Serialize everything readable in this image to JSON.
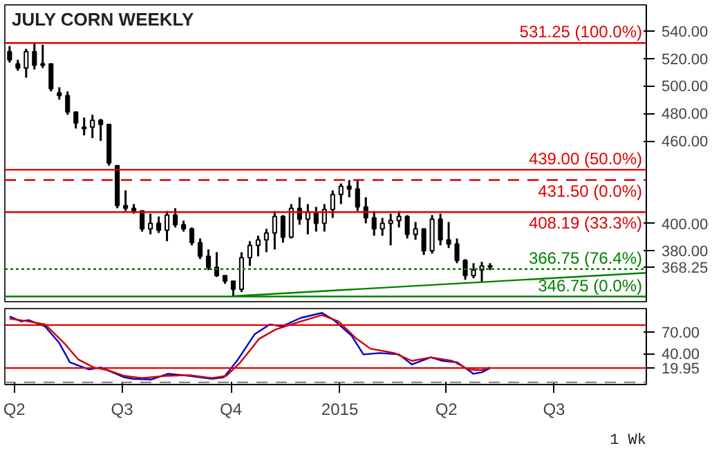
{
  "chart_data": [
    {
      "type": "candlestick",
      "title": "JULY CORN WEEKLY",
      "tick_labels": "y",
      "grid": false,
      "x": [
        "2014-03-28",
        "2014-04-04",
        "2014-04-11",
        "2014-04-18",
        "2014-04-25",
        "2014-05-02",
        "2014-05-09",
        "2014-05-16",
        "2014-05-23",
        "2014-05-30",
        "2014-06-06",
        "2014-06-13",
        "2014-06-20",
        "2014-06-27",
        "2014-07-04",
        "2014-07-11",
        "2014-07-18",
        "2014-07-25",
        "2014-08-01",
        "2014-08-08",
        "2014-08-15",
        "2014-08-22",
        "2014-08-29",
        "2014-09-05",
        "2014-09-12",
        "2014-09-19",
        "2014-09-26",
        "2014-10-03",
        "2014-10-10",
        "2014-10-17",
        "2014-10-24",
        "2014-10-31",
        "2014-11-07",
        "2014-11-14",
        "2014-11-21",
        "2014-11-28",
        "2014-12-05",
        "2014-12-12",
        "2014-12-19",
        "2014-12-26",
        "2015-01-02",
        "2015-01-09",
        "2015-01-16",
        "2015-01-23",
        "2015-01-30",
        "2015-02-06",
        "2015-02-13",
        "2015-02-20",
        "2015-02-27",
        "2015-03-06",
        "2015-03-13",
        "2015-03-20",
        "2015-03-27",
        "2015-04-03",
        "2015-04-10",
        "2015-04-17",
        "2015-04-24",
        "2015-05-01",
        "2015-05-08"
      ],
      "ohlc": [
        [
          525,
          529,
          517,
          519
        ],
        [
          516,
          519,
          511,
          513
        ],
        [
          513,
          527,
          506,
          525
        ],
        [
          525,
          531.25,
          512,
          515
        ],
        [
          515,
          530,
          513,
          516
        ],
        [
          516,
          516,
          496,
          498
        ],
        [
          495,
          499,
          490,
          493
        ],
        [
          493,
          496,
          479,
          481
        ],
        [
          481,
          481,
          469,
          473
        ],
        [
          469,
          477,
          464,
          470
        ],
        [
          470,
          479,
          462,
          475
        ],
        [
          475,
          476,
          460,
          472
        ],
        [
          472,
          472,
          442,
          444
        ],
        [
          442,
          442,
          411,
          413
        ],
        [
          413,
          424,
          409,
          411
        ],
        [
          411,
          414,
          407,
          409
        ],
        [
          409,
          409,
          394,
          396
        ],
        [
          396,
          407,
          392,
          400
        ],
        [
          400,
          405,
          393,
          395
        ],
        [
          395,
          409,
          387,
          406
        ],
        [
          406,
          411,
          397,
          399
        ],
        [
          399,
          402,
          394,
          396
        ],
        [
          396,
          397,
          384,
          386
        ],
        [
          386,
          389,
          374,
          376
        ],
        [
          376,
          381,
          366,
          368
        ],
        [
          368,
          379,
          361,
          362
        ],
        [
          362,
          362,
          356,
          358
        ],
        [
          358,
          358,
          346.75,
          352
        ],
        [
          352,
          379,
          350,
          375
        ],
        [
          375,
          387,
          369,
          384
        ],
        [
          384,
          391,
          376,
          388
        ],
        [
          388,
          396,
          379,
          393
        ],
        [
          393,
          409,
          381,
          405
        ],
        [
          405,
          406,
          386,
          390
        ],
        [
          390,
          414,
          389,
          411
        ],
        [
          411,
          419,
          399,
          403
        ],
        [
          403,
          414,
          392,
          408
        ],
        [
          408,
          412,
          394,
          400
        ],
        [
          400,
          414,
          394,
          410
        ],
        [
          410,
          424,
          404,
          421
        ],
        [
          421,
          429,
          414,
          427
        ],
        [
          427,
          431.5,
          419,
          425
        ],
        [
          425,
          431,
          409,
          412
        ],
        [
          412,
          419,
          400,
          404
        ],
        [
          404,
          409,
          391,
          396
        ],
        [
          396,
          404,
          391,
          400
        ],
        [
          400,
          407,
          384,
          402
        ],
        [
          402,
          409,
          397,
          405
        ],
        [
          405,
          406,
          389,
          392
        ],
        [
          392,
          401,
          388,
          396
        ],
        [
          396,
          396,
          377,
          380
        ],
        [
          380,
          406,
          378,
          403
        ],
        [
          403,
          407,
          384,
          388
        ],
        [
          388,
          401,
          382,
          385
        ],
        [
          385,
          389,
          371,
          373
        ],
        [
          373,
          374,
          359,
          362
        ],
        [
          362,
          371,
          360,
          366
        ],
        [
          366,
          372,
          357,
          369
        ],
        [
          369,
          371,
          366,
          368.25
        ]
      ],
      "series": [
        {
          "type": "line",
          "color": "#008000",
          "x": [
            "2014-10-03",
            "2015-09-17"
          ],
          "values": [
            347,
            364
          ]
        }
      ],
      "xlim": [
        "2014-03-24",
        "2015-09-17"
      ],
      "ylim": [
        343,
        559
      ],
      "yticks": [
        {
          "value": 368.25,
          "label": "368.25"
        },
        {
          "value": 380,
          "label": "380.00"
        },
        {
          "value": 400,
          "label": "400.00"
        },
        {
          "value": 460,
          "label": "460.00"
        },
        {
          "value": 480,
          "label": "480.00"
        },
        {
          "value": 500,
          "label": "500.00"
        },
        {
          "value": 520,
          "label": "520.00"
        },
        {
          "value": 540,
          "label": "540.00"
        }
      ],
      "ref_lines": [
        {
          "axis": "y",
          "value": 531.25,
          "label": "531.25 (100.0%)",
          "color": "#dd0000",
          "line_style": "solid"
        },
        {
          "axis": "y",
          "value": 439.0,
          "label": "439.00 (50.0%)",
          "color": "#dd0000",
          "line_style": "solid"
        },
        {
          "axis": "y",
          "value": 431.5,
          "label": "431.50 (0.0%)",
          "color": "#dd0000",
          "line_style": "dashed"
        },
        {
          "axis": "y",
          "value": 408.19,
          "label": "408.19 (33.3%)",
          "color": "#dd0000",
          "line_style": "solid"
        },
        {
          "axis": "y",
          "value": 366.75,
          "label": "366.75 (76.4%)",
          "color": "#008000",
          "line_style": "dotted"
        },
        {
          "axis": "y",
          "value": 346.75,
          "label": "346.75 (0.0%)",
          "color": "#008000",
          "line_style": "solid"
        }
      ]
    },
    {
      "type": "line",
      "grid": false,
      "series": [
        {
          "color": "#0000cc",
          "x": [
            "2014-03-28",
            "2014-04-07",
            "2014-04-13",
            "2014-04-27",
            "2014-05-09",
            "2014-05-18",
            "2014-06-03",
            "2014-06-13",
            "2014-07-03",
            "2014-07-10",
            "2014-07-26",
            "2014-08-09",
            "2014-08-27",
            "2014-09-15",
            "2014-09-25",
            "2014-10-07",
            "2014-10-21",
            "2014-11-03",
            "2014-11-13",
            "2014-11-29",
            "2014-12-17",
            "2014-12-27",
            "2015-01-11",
            "2015-01-21",
            "2015-02-04",
            "2015-02-20",
            "2015-03-03",
            "2015-03-19",
            "2015-03-29",
            "2015-04-10",
            "2015-04-24",
            "2015-05-01",
            "2015-05-08"
          ],
          "values": [
            92,
            85,
            87,
            78,
            55,
            28,
            18,
            21,
            7,
            5,
            4,
            12,
            9,
            5,
            7,
            32,
            67,
            81,
            78,
            90,
            97,
            87,
            65,
            39,
            41,
            39,
            25,
            35,
            30,
            28,
            12,
            14,
            19.95
          ]
        },
        {
          "color": "#cc0000",
          "x": [
            "2014-03-28",
            "2014-04-13",
            "2014-04-27",
            "2014-05-13",
            "2014-05-25",
            "2014-06-07",
            "2014-06-19",
            "2014-07-03",
            "2014-07-18",
            "2014-08-07",
            "2014-08-27",
            "2014-09-15",
            "2014-09-27",
            "2014-10-09",
            "2014-10-25",
            "2014-11-08",
            "2014-11-29",
            "2014-12-17",
            "2014-12-31",
            "2015-01-15",
            "2015-01-27",
            "2015-02-16",
            "2015-03-03",
            "2015-03-19",
            "2015-04-06",
            "2015-04-20",
            "2015-05-01",
            "2015-05-08"
          ],
          "values": [
            89,
            85,
            81,
            55,
            32,
            21,
            17,
            9,
            6,
            9,
            10,
            6,
            9,
            28,
            61,
            74,
            85,
            94,
            85,
            61,
            47,
            41,
            30,
            35,
            30,
            18,
            17,
            21
          ]
        }
      ],
      "xlim": [
        "2014-03-24",
        "2015-09-17"
      ],
      "ylim": [
        -3,
        103
      ],
      "xticks": [
        {
          "value": "2014-04-01",
          "label": "Q2"
        },
        {
          "value": "2014-07-01",
          "label": "Q3"
        },
        {
          "value": "2014-10-01",
          "label": "Q4"
        },
        {
          "value": "2015-01-01",
          "label": "2015"
        },
        {
          "value": "2015-04-01",
          "label": "Q2"
        },
        {
          "value": "2015-07-01",
          "label": "Q3"
        }
      ],
      "yticks": [
        {
          "value": 19.95,
          "label": "19.95"
        },
        {
          "value": 40,
          "label": "40.00"
        },
        {
          "value": 70,
          "label": "70.00"
        }
      ],
      "ref_lines": [
        {
          "axis": "y",
          "value": 80,
          "color": "#dd0000",
          "line_style": "solid"
        },
        {
          "axis": "y",
          "value": 20,
          "color": "#dd0000",
          "line_style": "solid"
        },
        {
          "axis": "y",
          "value": 0,
          "color": "#888888",
          "line_style": "dashed"
        }
      ],
      "annotations": [
        "1 Wk"
      ]
    }
  ]
}
